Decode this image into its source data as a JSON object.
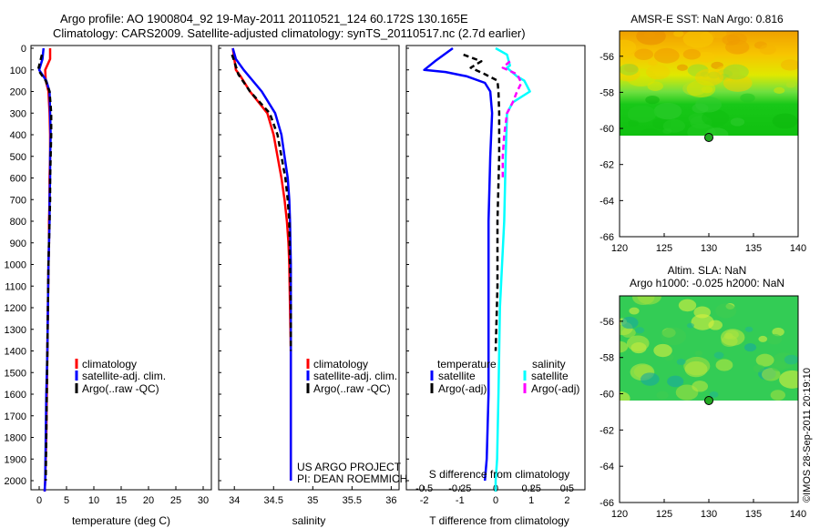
{
  "header": {
    "line1": "Argo profile: AO 1900804_92 19-May-2011 20110521_124 60.172S 130.165E",
    "line2": "Climatology: CARS2009. Satellite-adjusted climatology: synTS_20110517.nc (2.7d earlier)"
  },
  "colors": {
    "climatology": "#ff0000",
    "satellite": "#0000ff",
    "argo": "#000000",
    "salinity_satellite": "#00ffff",
    "salinity_argo": "#ff00ff"
  },
  "depth_ticks": [
    "0",
    "100",
    "200",
    "300",
    "400",
    "500",
    "600",
    "700",
    "800",
    "900",
    "1000",
    "1100",
    "1200",
    "1300",
    "1400",
    "1500",
    "1600",
    "1700",
    "1800",
    "1900",
    "2000"
  ],
  "lat_ticks": [
    "-56",
    "-58",
    "-60",
    "-62",
    "-64",
    "-66"
  ],
  "lon_ticks": [
    "120",
    "125",
    "130",
    "135",
    "140"
  ],
  "panels": {
    "temperature": {
      "xlabel": "temperature (deg C)",
      "xticks": [
        "0",
        "5",
        "10",
        "15",
        "20",
        "25",
        "30"
      ],
      "legend": [
        "climatology",
        "satellite-adj. clim.",
        "Argo(..raw -QC)"
      ]
    },
    "salinity": {
      "xlabel": "salinity",
      "xticks": [
        "34",
        "34.5",
        "35",
        "35.5",
        "36"
      ],
      "legend": [
        "climatology",
        "satellite-adj. clim.",
        "Argo(..raw -QC)"
      ],
      "note1": "US ARGO PROJECT",
      "note2": "PI: DEAN ROEMMICH"
    },
    "difference": {
      "top_label": "S difference from climatology",
      "top_ticks": [
        "-0.5",
        "-0.25",
        "0",
        "0.25",
        "0.5"
      ],
      "xlabel": "T difference from climatology",
      "xticks": [
        "-2",
        "-1",
        "0",
        "1",
        "2"
      ],
      "legend_head_t": "temperature",
      "legend_head_s": "salinity",
      "legend_t1": "satellite",
      "legend_t2": "Argo(-adj)",
      "legend_s1": "satellite",
      "legend_s2": "Argo(-adj)"
    },
    "map_sst": {
      "title": "AMSR-E SST: NaN Argo: 0.816"
    },
    "map_sla": {
      "title1": "Altim. SLA: NaN",
      "title2": "Argo h1000: -0.025 h2000: NaN"
    }
  },
  "side_stamp": "©IMOS 28-Sep-2011 20:19:10",
  "chart_data": [
    {
      "type": "line",
      "title": "",
      "xlabel": "temperature (deg C)",
      "ylabel": "",
      "xlim": [
        -1.5,
        31.5
      ],
      "ylim": [
        2070,
        -20
      ],
      "series": [
        {
          "name": "climatology",
          "x": [
            2.0,
            2.0,
            1.1,
            1.2,
            1.7,
            1.9,
            2.0,
            2.0,
            1.9,
            1.9,
            1.8,
            1.8,
            1.7,
            1.6,
            1.5,
            1.4,
            1.3,
            1.2,
            1.1,
            1.0
          ],
          "y": [
            0,
            50,
            100,
            150,
            200,
            300,
            400,
            500,
            600,
            700,
            800,
            900,
            1000,
            1200,
            1400,
            1600,
            1800,
            1900,
            2000,
            2050
          ]
        },
        {
          "name": "satellite-adj. clim.",
          "x": [
            0.8,
            0.6,
            0.0,
            1.3,
            1.9,
            2.0,
            2.1,
            2.0,
            2.0,
            1.9,
            1.9,
            1.8,
            1.7,
            1.6,
            1.5,
            1.3,
            1.2,
            1.1,
            1.0
          ],
          "y": [
            0,
            50,
            100,
            150,
            200,
            300,
            400,
            500,
            600,
            700,
            800,
            900,
            1000,
            1200,
            1400,
            1600,
            1800,
            2000,
            2050
          ]
        },
        {
          "name": "Argo(..raw -QC)",
          "x": [
            0.5,
            0.2,
            -0.2,
            1.2,
            1.9,
            2.2,
            2.2,
            2.1,
            2.0,
            2.0,
            1.9,
            1.8,
            1.7,
            1.6,
            1.5,
            1.4,
            1.3,
            1.2
          ],
          "y": [
            30,
            60,
            100,
            150,
            200,
            300,
            400,
            500,
            600,
            700,
            800,
            900,
            1000,
            1200,
            1400,
            1600,
            1800,
            2000
          ]
        }
      ]
    },
    {
      "type": "line",
      "title": "",
      "xlabel": "salinity",
      "ylabel": "",
      "xlim": [
        33.8,
        36.1
      ],
      "ylim": [
        2070,
        -20
      ],
      "series": [
        {
          "name": "climatology",
          "x": [
            33.98,
            34.0,
            34.02,
            34.08,
            34.2,
            34.42,
            34.5,
            34.55,
            34.6,
            34.64,
            34.67,
            34.69,
            34.7,
            34.71,
            34.72,
            34.72,
            34.72,
            34.72
          ],
          "y": [
            0,
            50,
            100,
            130,
            200,
            300,
            400,
            500,
            600,
            700,
            800,
            900,
            1000,
            1200,
            1400,
            1600,
            1800,
            2000
          ]
        },
        {
          "name": "satellite-adj. clim.",
          "x": [
            33.98,
            34.02,
            34.12,
            34.35,
            34.52,
            34.6,
            34.64,
            34.68,
            34.7,
            34.71,
            34.72,
            34.72,
            34.72,
            34.72,
            34.72
          ],
          "y": [
            0,
            50,
            100,
            200,
            300,
            400,
            500,
            600,
            700,
            800,
            1000,
            1200,
            1400,
            1600,
            2000
          ]
        },
        {
          "name": "Argo(..raw -QC)",
          "x": [
            33.97,
            34.0,
            34.05,
            34.2,
            34.45,
            34.55,
            34.6,
            34.65,
            34.68,
            34.7,
            34.71,
            34.72,
            34.72
          ],
          "y": [
            30,
            60,
            120,
            200,
            300,
            400,
            500,
            600,
            700,
            800,
            1000,
            1200,
            1400
          ]
        }
      ]
    },
    {
      "type": "line",
      "title": "",
      "xlabel": "T difference from climatology",
      "ylabel": "",
      "xlim": [
        -2.5,
        2.5
      ],
      "ylim": [
        2070,
        -20
      ],
      "series": [
        {
          "name": "temperature satellite",
          "x": [
            -1.2,
            -1.7,
            -2.0,
            -1.4,
            -0.8,
            -0.3,
            -0.15,
            -0.1,
            -0.15,
            -0.2,
            -0.2,
            -0.2,
            -0.25,
            -0.3
          ],
          "y": [
            0,
            60,
            100,
            110,
            130,
            160,
            200,
            300,
            500,
            800,
            1200,
            1600,
            1900,
            2000
          ]
        },
        {
          "name": "temperature Argo(-adj)",
          "x": [
            -0.9,
            -0.4,
            -0.7,
            -0.3,
            0.05,
            0.08,
            0.1,
            0.1,
            0.05,
            0.05,
            0.0
          ],
          "y": [
            30,
            60,
            90,
            120,
            150,
            200,
            300,
            500,
            800,
            1100,
            1400
          ]
        }
      ]
    },
    {
      "type": "line",
      "title": "",
      "xlabel": "S difference from climatology",
      "ylabel": "",
      "xlim": [
        -0.625,
        0.625
      ],
      "ylim": [
        2070,
        -20
      ],
      "series": [
        {
          "name": "salinity satellite",
          "x": [
            0.0,
            0.08,
            0.1,
            0.08,
            0.15,
            0.2,
            0.24,
            0.12,
            0.08,
            0.07,
            0.06,
            0.03,
            0.02,
            0.01,
            0.0,
            0.0
          ],
          "y": [
            0,
            30,
            80,
            90,
            130,
            150,
            200,
            250,
            300,
            500,
            800,
            1200,
            1600,
            1900,
            2000,
            2050
          ]
        },
        {
          "name": "salinity Argo(-adj)",
          "x": [
            0.1,
            0.05,
            0.15,
            0.18,
            0.15,
            0.12,
            0.08,
            0.06,
            0.05,
            0.05
          ],
          "y": [
            60,
            90,
            120,
            160,
            200,
            250,
            300,
            400,
            500,
            600
          ]
        }
      ]
    },
    {
      "type": "heatmap",
      "title": "AMSR-E SST: NaN Argo: 0.816",
      "xlim": [
        120,
        140
      ],
      "ylim": [
        -66,
        -54.6
      ],
      "data_extent_lat": [
        -60,
        -54.6
      ],
      "argo_position": {
        "lon": 130.165,
        "lat": -60.172
      }
    },
    {
      "type": "heatmap",
      "title": "Altim. SLA: NaN",
      "subtitle": "Argo h1000: -0.025 h2000: NaN",
      "xlim": [
        120,
        140
      ],
      "ylim": [
        -66,
        -54.6
      ],
      "data_extent_lat": [
        -60,
        -54.6
      ],
      "argo_position": {
        "lon": 130.165,
        "lat": -60.172
      }
    }
  ]
}
